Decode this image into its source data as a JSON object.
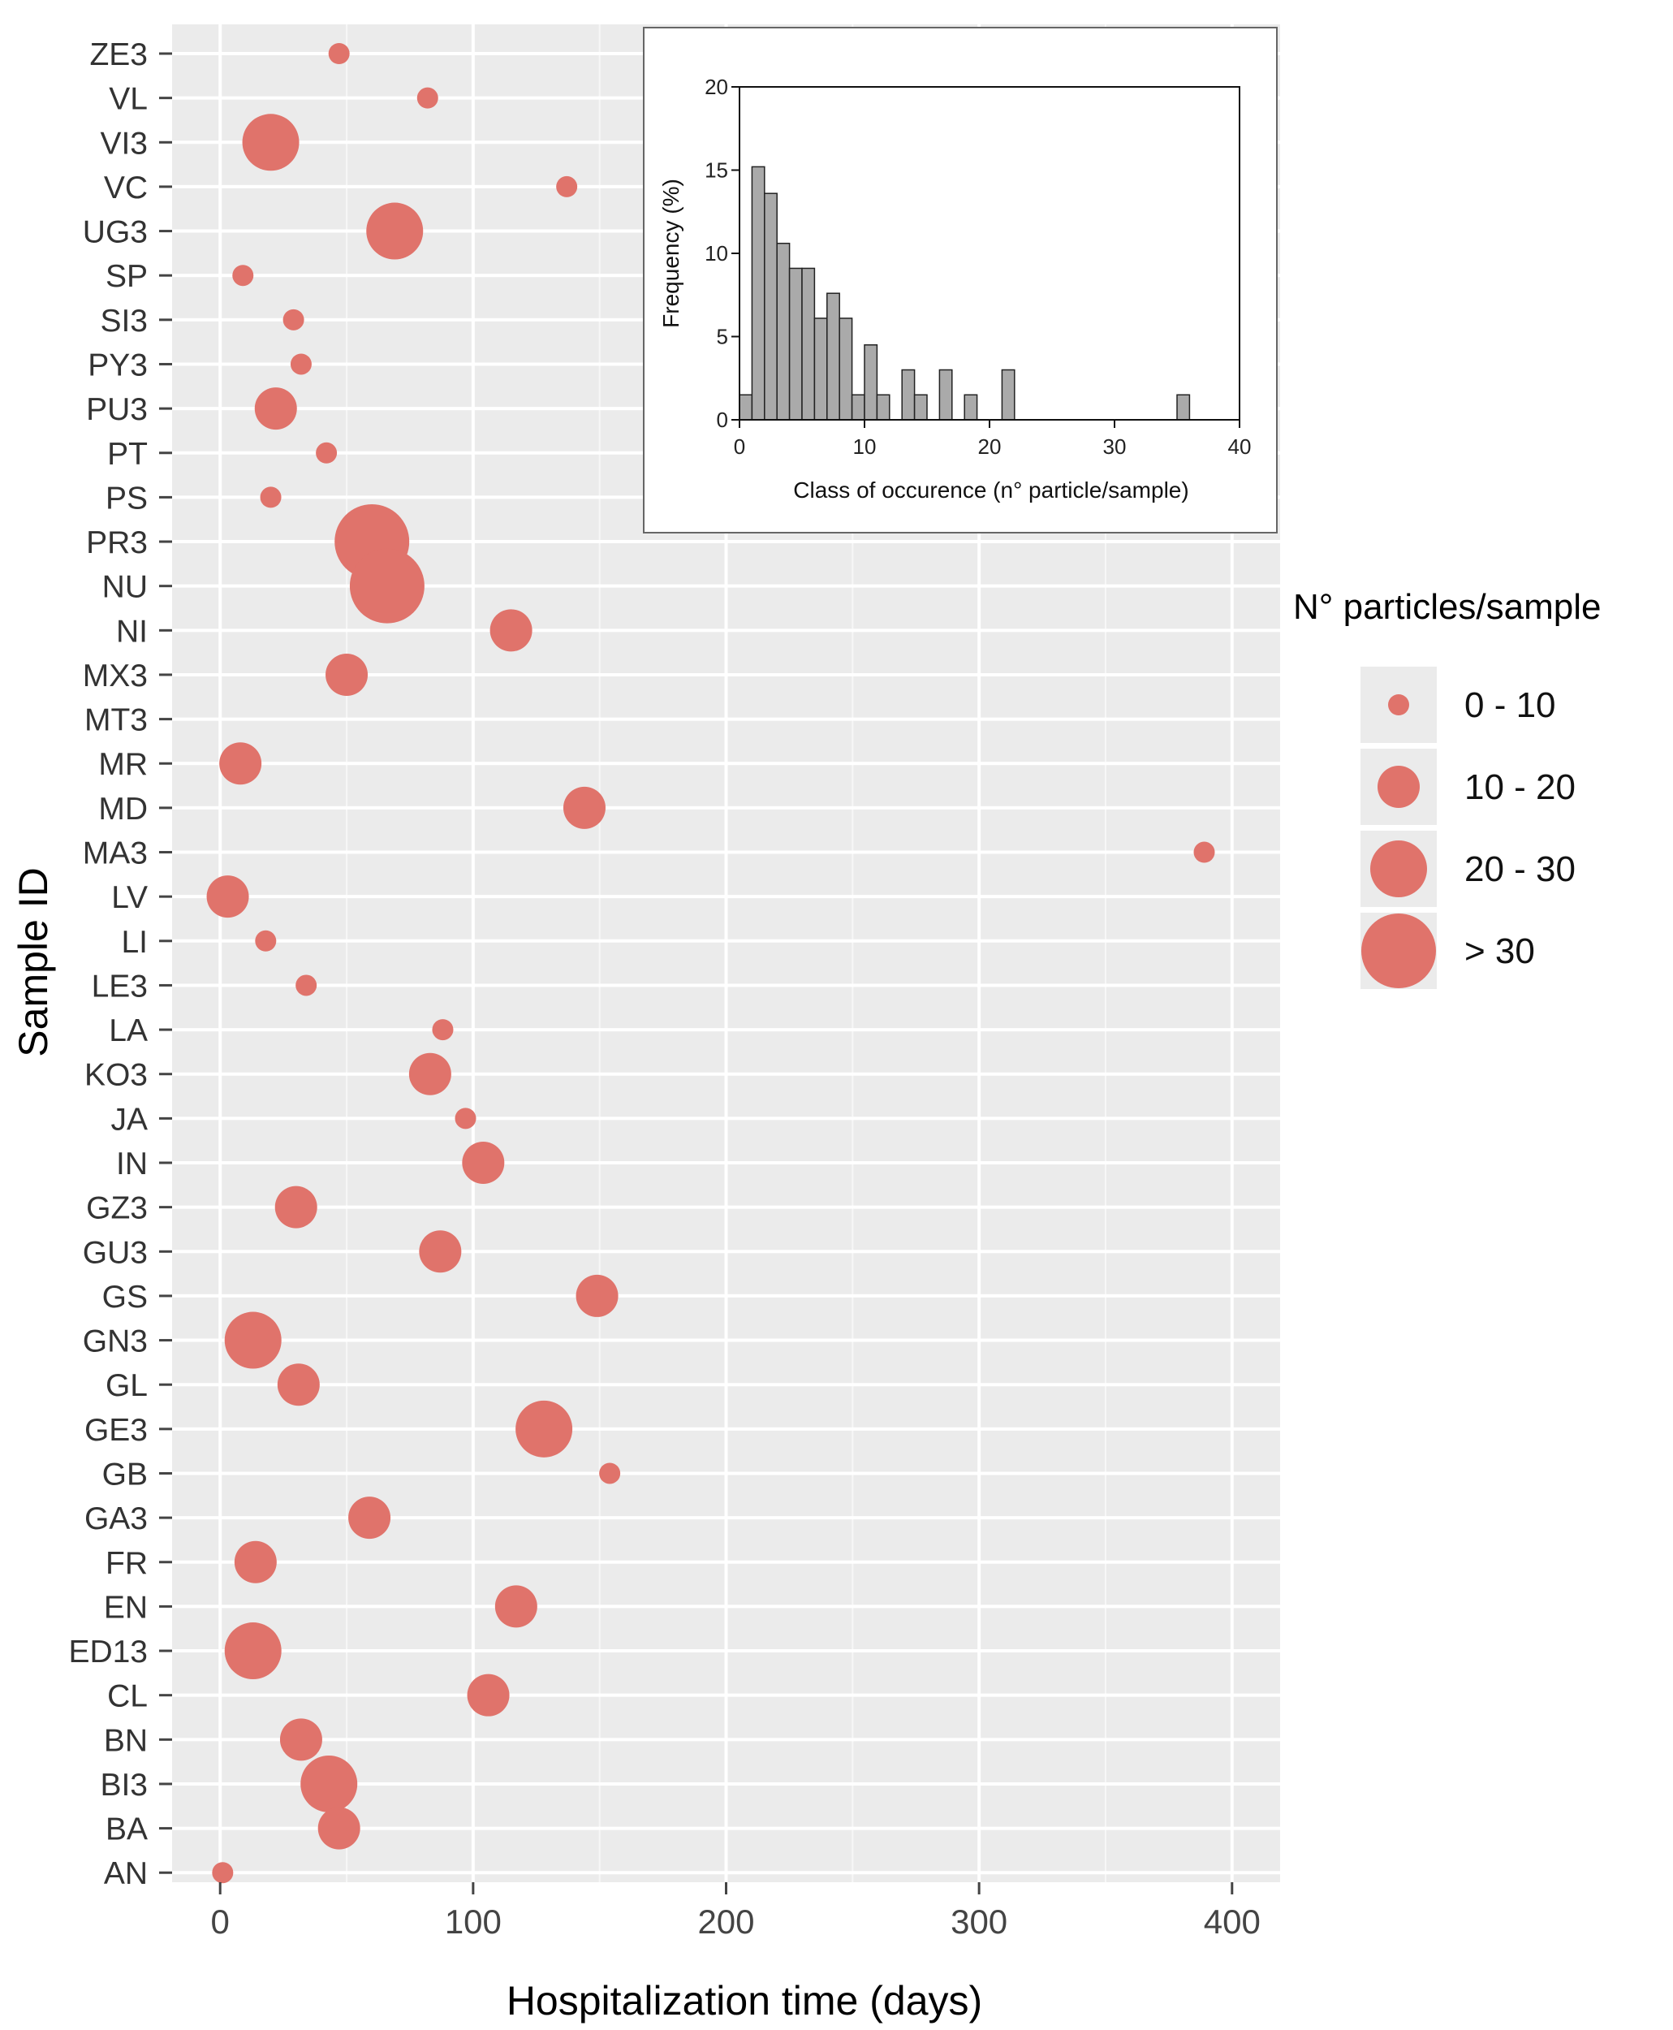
{
  "chart_data": [
    {
      "type": "scatter",
      "xlabel": "Hospitalization time (days)",
      "ylabel": "Sample ID",
      "xlim": [
        -19,
        419
      ],
      "x_ticks": [
        0,
        100,
        200,
        300,
        400
      ],
      "grid": true,
      "size_legend": {
        "title": "N° particles/sample",
        "placement": "right",
        "entries": [
          "0 - 10",
          "10 - 20",
          "20 - 30",
          "> 30"
        ]
      },
      "categories": [
        "ZE3",
        "VL",
        "VI3",
        "VC",
        "UG3",
        "SP",
        "SI3",
        "PY3",
        "PU3",
        "PT",
        "PS",
        "PR3",
        "NU",
        "NI",
        "MX3",
        "MT3",
        "MR",
        "MD",
        "MA3",
        "LV",
        "LI",
        "LE3",
        "LA",
        "KO3",
        "JA",
        "IN",
        "GZ3",
        "GU3",
        "GS",
        "GN3",
        "GL",
        "GE3",
        "GB",
        "GA3",
        "FR",
        "EN",
        "ED13",
        "CL",
        "BN",
        "BI3",
        "BA",
        "AN"
      ],
      "points": [
        {
          "id": "ZE3",
          "x": 47,
          "size_class": 1
        },
        {
          "id": "VL",
          "x": 82,
          "size_class": 1
        },
        {
          "id": "VI3",
          "x": 20,
          "size_class": 3
        },
        {
          "id": "VC",
          "x": 137,
          "size_class": 1
        },
        {
          "id": "UG3",
          "x": 69,
          "size_class": 3
        },
        {
          "id": "SP",
          "x": 9,
          "size_class": 1
        },
        {
          "id": "SI3",
          "x": 29,
          "size_class": 1
        },
        {
          "id": "PY3",
          "x": 32,
          "size_class": 1
        },
        {
          "id": "PU3",
          "x": 22,
          "size_class": 2
        },
        {
          "id": "PT",
          "x": 42,
          "size_class": 1
        },
        {
          "id": "PS",
          "x": 20,
          "size_class": 1
        },
        {
          "id": "PR3",
          "x": 60,
          "size_class": 4
        },
        {
          "id": "NU",
          "x": 66,
          "size_class": 4
        },
        {
          "id": "NI",
          "x": 115,
          "size_class": 2
        },
        {
          "id": "MX3",
          "x": 50,
          "size_class": 2
        },
        {
          "id": "MR",
          "x": 8,
          "size_class": 2
        },
        {
          "id": "MD",
          "x": 144,
          "size_class": 2
        },
        {
          "id": "MA3",
          "x": 389,
          "size_class": 1
        },
        {
          "id": "LV",
          "x": 3,
          "size_class": 2
        },
        {
          "id": "LI",
          "x": 18,
          "size_class": 1
        },
        {
          "id": "LE3",
          "x": 34,
          "size_class": 1
        },
        {
          "id": "LA",
          "x": 88,
          "size_class": 1
        },
        {
          "id": "KO3",
          "x": 83,
          "size_class": 2
        },
        {
          "id": "JA",
          "x": 97,
          "size_class": 1
        },
        {
          "id": "IN",
          "x": 104,
          "size_class": 2
        },
        {
          "id": "GZ3",
          "x": 30,
          "size_class": 2
        },
        {
          "id": "GU3",
          "x": 87,
          "size_class": 2
        },
        {
          "id": "GS",
          "x": 149,
          "size_class": 2
        },
        {
          "id": "GN3",
          "x": 13,
          "size_class": 3
        },
        {
          "id": "GL",
          "x": 31,
          "size_class": 2
        },
        {
          "id": "GE3",
          "x": 128,
          "size_class": 3
        },
        {
          "id": "GB",
          "x": 154,
          "size_class": 1
        },
        {
          "id": "GA3",
          "x": 59,
          "size_class": 2
        },
        {
          "id": "FR",
          "x": 14,
          "size_class": 2
        },
        {
          "id": "EN",
          "x": 117,
          "size_class": 2
        },
        {
          "id": "ED13",
          "x": 13,
          "size_class": 3
        },
        {
          "id": "CL",
          "x": 106,
          "size_class": 2
        },
        {
          "id": "BN",
          "x": 32,
          "size_class": 2
        },
        {
          "id": "BI3",
          "x": 43,
          "size_class": 3
        },
        {
          "id": "BA",
          "x": 47,
          "size_class": 2
        },
        {
          "id": "AN",
          "x": 1,
          "size_class": 1
        }
      ]
    },
    {
      "type": "bar",
      "subtype": "histogram",
      "xlabel": "Class of occurence (n° particle/sample)",
      "ylabel": "Frequency (%)",
      "xlim": [
        0,
        40
      ],
      "ylim": [
        0,
        20
      ],
      "x_ticks": [
        0,
        10,
        20,
        30,
        40
      ],
      "y_ticks": [
        0,
        5,
        10,
        15,
        20
      ],
      "bin_width": 1,
      "bins": [
        0,
        1,
        2,
        3,
        4,
        5,
        6,
        7,
        8,
        9,
        10,
        11,
        12,
        13,
        14,
        15,
        16,
        17,
        18,
        19,
        20,
        21,
        22,
        23,
        24,
        25,
        26,
        27,
        28,
        29,
        30,
        31,
        32,
        33,
        34,
        35,
        36,
        37,
        38,
        39
      ],
      "values": [
        1.5,
        15.2,
        13.6,
        10.6,
        9.1,
        9.1,
        6.1,
        7.6,
        6.1,
        1.5,
        4.5,
        1.5,
        0,
        3.0,
        1.5,
        0,
        3.0,
        0,
        1.5,
        0,
        0,
        3.0,
        0,
        0,
        0,
        0,
        0,
        0,
        0,
        0,
        0,
        0,
        0,
        0,
        0,
        1.5,
        0,
        0,
        0,
        0
      ]
    }
  ]
}
